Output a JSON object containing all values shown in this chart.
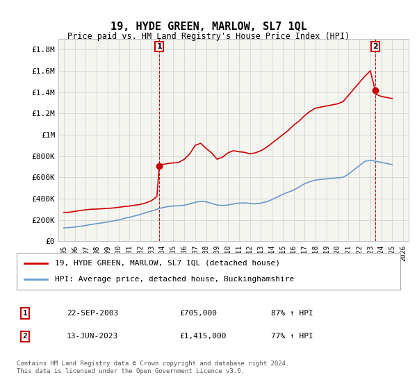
{
  "title": "19, HYDE GREEN, MARLOW, SL7 1QL",
  "subtitle": "Price paid vs. HM Land Registry's House Price Index (HPI)",
  "legend_label_red": "19, HYDE GREEN, MARLOW, SL7 1QL (detached house)",
  "legend_label_blue": "HPI: Average price, detached house, Buckinghamshire",
  "annotation1_num": "1",
  "annotation1_date": "22-SEP-2003",
  "annotation1_price": "£705,000",
  "annotation1_hpi": "87% ↑ HPI",
  "annotation2_num": "2",
  "annotation2_date": "13-JUN-2023",
  "annotation2_price": "£1,415,000",
  "annotation2_hpi": "77% ↑ HPI",
  "footnote": "Contains HM Land Registry data © Crown copyright and database right 2024.\nThis data is licensed under the Open Government Licence v3.0.",
  "red_color": "#cc0000",
  "blue_color": "#6699cc",
  "vline_color": "#cc0000",
  "background_color": "#f5f5f0",
  "grid_color": "#cccccc",
  "ylim": [
    0,
    1900000
  ],
  "yticks": [
    0,
    200000,
    400000,
    600000,
    800000,
    1000000,
    1200000,
    1400000,
    1600000,
    1800000
  ],
  "ytick_labels": [
    "£0",
    "£200K",
    "£400K",
    "£600K",
    "£800K",
    "£1M",
    "£1.2M",
    "£1.4M",
    "£1.6M",
    "£1.8M"
  ],
  "sale1_year": 2003.72,
  "sale1_price": 705000,
  "sale2_year": 2023.44,
  "sale2_price": 1415000,
  "red_x": [
    1995,
    1995.5,
    1996,
    1996.5,
    1997,
    1997.5,
    1998,
    1998.5,
    1999,
    1999.5,
    2000,
    2000.5,
    2001,
    2001.5,
    2002,
    2002.5,
    2003,
    2003.5,
    2003.72,
    2004,
    2004.5,
    2005,
    2005.5,
    2006,
    2006.5,
    2007,
    2007.5,
    2008,
    2008.5,
    2009,
    2009.5,
    2010,
    2010.5,
    2011,
    2011.5,
    2012,
    2012.5,
    2013,
    2013.5,
    2014,
    2014.5,
    2015,
    2015.5,
    2016,
    2016.5,
    2017,
    2017.5,
    2018,
    2018.5,
    2019,
    2019.5,
    2020,
    2020.5,
    2021,
    2021.5,
    2022,
    2022.5,
    2023,
    2023.44,
    2023.5,
    2024,
    2024.5,
    2025
  ],
  "red_y": [
    270000,
    272000,
    280000,
    288000,
    295000,
    300000,
    302000,
    305000,
    308000,
    312000,
    318000,
    325000,
    330000,
    338000,
    345000,
    360000,
    380000,
    420000,
    705000,
    720000,
    730000,
    735000,
    740000,
    770000,
    820000,
    900000,
    920000,
    870000,
    830000,
    770000,
    790000,
    830000,
    850000,
    840000,
    835000,
    820000,
    830000,
    850000,
    880000,
    920000,
    960000,
    1000000,
    1040000,
    1090000,
    1130000,
    1180000,
    1220000,
    1250000,
    1260000,
    1270000,
    1280000,
    1290000,
    1310000,
    1370000,
    1430000,
    1490000,
    1550000,
    1600000,
    1415000,
    1380000,
    1360000,
    1350000,
    1340000
  ],
  "blue_x": [
    1995,
    1995.5,
    1996,
    1996.5,
    1997,
    1997.5,
    1998,
    1998.5,
    1999,
    1999.5,
    2000,
    2000.5,
    2001,
    2001.5,
    2002,
    2002.5,
    2003,
    2003.5,
    2004,
    2004.5,
    2005,
    2005.5,
    2006,
    2006.5,
    2007,
    2007.5,
    2008,
    2008.5,
    2009,
    2009.5,
    2010,
    2010.5,
    2011,
    2011.5,
    2012,
    2012.5,
    2013,
    2013.5,
    2014,
    2014.5,
    2015,
    2015.5,
    2016,
    2016.5,
    2017,
    2017.5,
    2018,
    2018.5,
    2019,
    2019.5,
    2020,
    2020.5,
    2021,
    2021.5,
    2022,
    2022.5,
    2023,
    2023.5,
    2024,
    2024.5,
    2025
  ],
  "blue_y": [
    125000,
    128000,
    133000,
    140000,
    148000,
    157000,
    165000,
    172000,
    180000,
    190000,
    200000,
    213000,
    225000,
    238000,
    252000,
    267000,
    283000,
    300000,
    315000,
    325000,
    330000,
    332000,
    338000,
    350000,
    365000,
    375000,
    370000,
    355000,
    340000,
    335000,
    340000,
    350000,
    358000,
    360000,
    355000,
    350000,
    358000,
    370000,
    390000,
    415000,
    440000,
    460000,
    480000,
    510000,
    540000,
    560000,
    575000,
    580000,
    585000,
    590000,
    595000,
    600000,
    630000,
    670000,
    710000,
    750000,
    760000,
    750000,
    740000,
    730000,
    720000
  ]
}
